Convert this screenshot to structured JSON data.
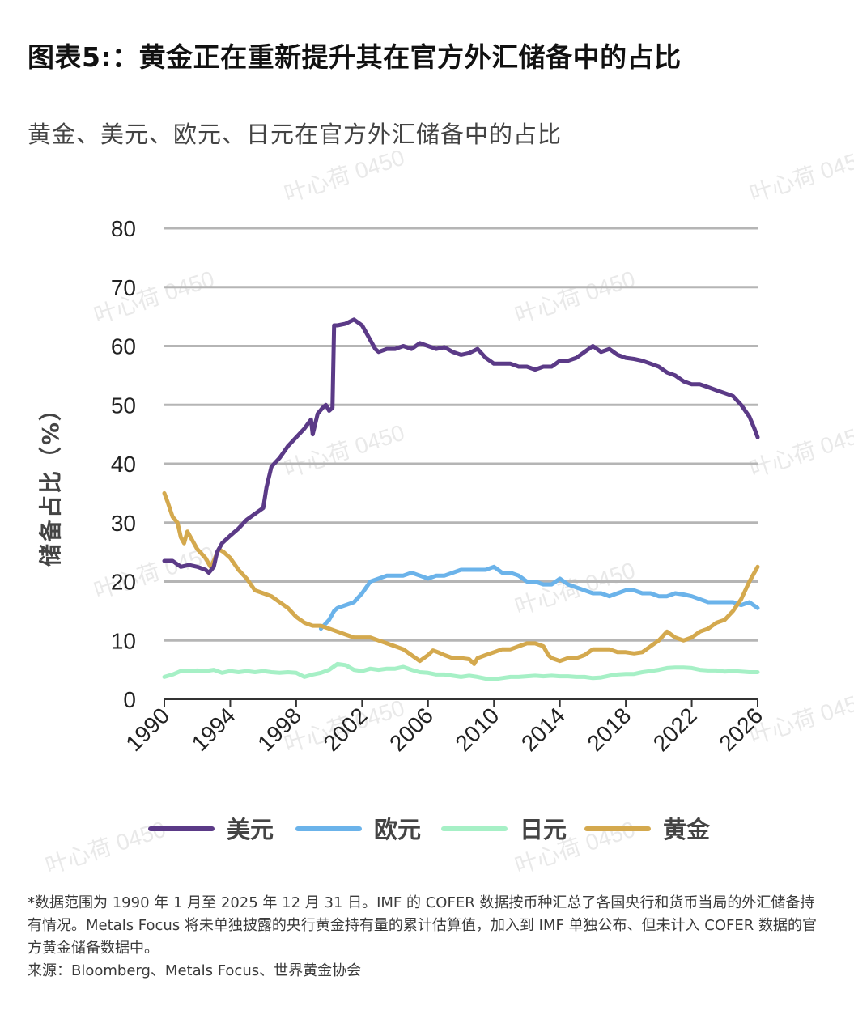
{
  "title": "图表5:：黄金正在重新提升其在官方外汇储备中的占比",
  "chart_data": {
    "type": "line",
    "title": "黄金、美元、欧元、日元在官方外汇储备中的占比",
    "xlabel": "",
    "ylabel": "储备占比（%）",
    "xlim": [
      1990,
      2026
    ],
    "ylim": [
      0,
      80
    ],
    "x_ticks": [
      "1990",
      "1994",
      "1998",
      "2002",
      "2006",
      "2010",
      "2014",
      "2018",
      "2022",
      "2026"
    ],
    "y_ticks": [
      "0",
      "10",
      "20",
      "30",
      "40",
      "50",
      "60",
      "70",
      "80"
    ],
    "grid": true,
    "legend_position": "bottom",
    "series": [
      {
        "name": "美元",
        "color": "#5b3a87",
        "points": [
          [
            1990.0,
            23.5
          ],
          [
            1990.5,
            23.5
          ],
          [
            1991.0,
            22.5
          ],
          [
            1991.5,
            22.8
          ],
          [
            1992.0,
            22.5
          ],
          [
            1992.5,
            22.0
          ],
          [
            1992.7,
            21.5
          ],
          [
            1993.0,
            22.5
          ],
          [
            1993.2,
            25.0
          ],
          [
            1993.5,
            26.5
          ],
          [
            1994.0,
            27.8
          ],
          [
            1994.5,
            29.0
          ],
          [
            1995.0,
            30.5
          ],
          [
            1995.5,
            31.5
          ],
          [
            1996.0,
            32.5
          ],
          [
            1996.2,
            36.0
          ],
          [
            1996.5,
            39.5
          ],
          [
            1997.0,
            41.0
          ],
          [
            1997.5,
            43.0
          ],
          [
            1998.0,
            44.5
          ],
          [
            1998.5,
            46.0
          ],
          [
            1998.9,
            47.5
          ],
          [
            1999.0,
            45.0
          ],
          [
            1999.3,
            48.5
          ],
          [
            1999.6,
            49.5
          ],
          [
            1999.8,
            50.0
          ],
          [
            2000.0,
            49.0
          ],
          [
            2000.2,
            49.5
          ],
          [
            2000.3,
            63.5
          ],
          [
            2000.5,
            63.5
          ],
          [
            2001.0,
            63.8
          ],
          [
            2001.5,
            64.5
          ],
          [
            2002.0,
            63.5
          ],
          [
            2002.5,
            61.0
          ],
          [
            2002.8,
            59.5
          ],
          [
            2003.0,
            59.0
          ],
          [
            2003.5,
            59.5
          ],
          [
            2004.0,
            59.5
          ],
          [
            2004.5,
            60.0
          ],
          [
            2005.0,
            59.5
          ],
          [
            2005.5,
            60.5
          ],
          [
            2006.0,
            60.0
          ],
          [
            2006.5,
            59.5
          ],
          [
            2007.0,
            59.8
          ],
          [
            2007.5,
            59.0
          ],
          [
            2008.0,
            58.5
          ],
          [
            2008.5,
            58.8
          ],
          [
            2009.0,
            59.5
          ],
          [
            2009.5,
            58.0
          ],
          [
            2010.0,
            57.0
          ],
          [
            2010.5,
            57.0
          ],
          [
            2011.0,
            57.0
          ],
          [
            2011.5,
            56.5
          ],
          [
            2012.0,
            56.5
          ],
          [
            2012.5,
            56.0
          ],
          [
            2013.0,
            56.5
          ],
          [
            2013.5,
            56.5
          ],
          [
            2014.0,
            57.5
          ],
          [
            2014.5,
            57.5
          ],
          [
            2015.0,
            58.0
          ],
          [
            2015.5,
            59.0
          ],
          [
            2016.0,
            60.0
          ],
          [
            2016.5,
            59.0
          ],
          [
            2017.0,
            59.5
          ],
          [
            2017.5,
            58.5
          ],
          [
            2018.0,
            58.0
          ],
          [
            2018.5,
            57.8
          ],
          [
            2019.0,
            57.5
          ],
          [
            2019.5,
            57.0
          ],
          [
            2020.0,
            56.5
          ],
          [
            2020.5,
            55.5
          ],
          [
            2021.0,
            55.0
          ],
          [
            2021.5,
            54.0
          ],
          [
            2022.0,
            53.5
          ],
          [
            2022.5,
            53.5
          ],
          [
            2023.0,
            53.0
          ],
          [
            2023.5,
            52.5
          ],
          [
            2024.0,
            52.0
          ],
          [
            2024.5,
            51.5
          ],
          [
            2025.0,
            50.0
          ],
          [
            2025.5,
            48.0
          ],
          [
            2025.8,
            46.0
          ],
          [
            2026.0,
            44.5
          ]
        ]
      },
      {
        "name": "欧元",
        "color": "#6bb3ea",
        "points": [
          [
            1999.5,
            12.0
          ],
          [
            2000.0,
            13.5
          ],
          [
            2000.3,
            15.0
          ],
          [
            2000.5,
            15.5
          ],
          [
            2001.0,
            16.0
          ],
          [
            2001.5,
            16.5
          ],
          [
            2002.0,
            18.0
          ],
          [
            2002.5,
            20.0
          ],
          [
            2003.0,
            20.5
          ],
          [
            2003.5,
            21.0
          ],
          [
            2004.0,
            21.0
          ],
          [
            2004.5,
            21.0
          ],
          [
            2005.0,
            21.5
          ],
          [
            2005.5,
            21.0
          ],
          [
            2006.0,
            20.5
          ],
          [
            2006.5,
            21.0
          ],
          [
            2007.0,
            21.0
          ],
          [
            2007.5,
            21.5
          ],
          [
            2008.0,
            22.0
          ],
          [
            2008.5,
            22.0
          ],
          [
            2009.0,
            22.0
          ],
          [
            2009.5,
            22.0
          ],
          [
            2010.0,
            22.5
          ],
          [
            2010.5,
            21.5
          ],
          [
            2011.0,
            21.5
          ],
          [
            2011.5,
            21.0
          ],
          [
            2012.0,
            20.0
          ],
          [
            2012.5,
            20.0
          ],
          [
            2013.0,
            19.5
          ],
          [
            2013.5,
            19.5
          ],
          [
            2014.0,
            20.5
          ],
          [
            2014.5,
            19.5
          ],
          [
            2015.0,
            19.0
          ],
          [
            2015.5,
            18.5
          ],
          [
            2016.0,
            18.0
          ],
          [
            2016.5,
            18.0
          ],
          [
            2017.0,
            17.5
          ],
          [
            2017.5,
            18.0
          ],
          [
            2018.0,
            18.5
          ],
          [
            2018.5,
            18.5
          ],
          [
            2019.0,
            18.0
          ],
          [
            2019.5,
            18.0
          ],
          [
            2020.0,
            17.5
          ],
          [
            2020.5,
            17.5
          ],
          [
            2021.0,
            18.0
          ],
          [
            2021.5,
            17.8
          ],
          [
            2022.0,
            17.5
          ],
          [
            2022.5,
            17.0
          ],
          [
            2023.0,
            16.5
          ],
          [
            2023.5,
            16.5
          ],
          [
            2024.0,
            16.5
          ],
          [
            2024.5,
            16.5
          ],
          [
            2025.0,
            16.0
          ],
          [
            2025.5,
            16.5
          ],
          [
            2026.0,
            15.5
          ]
        ]
      },
      {
        "name": "日元",
        "color": "#a6f0c6",
        "points": [
          [
            1990.0,
            3.8
          ],
          [
            1990.5,
            4.2
          ],
          [
            1991.0,
            4.8
          ],
          [
            1991.5,
            4.8
          ],
          [
            1992.0,
            4.9
          ],
          [
            1992.5,
            4.8
          ],
          [
            1993.0,
            5.0
          ],
          [
            1993.5,
            4.5
          ],
          [
            1994.0,
            4.8
          ],
          [
            1994.5,
            4.6
          ],
          [
            1995.0,
            4.8
          ],
          [
            1995.5,
            4.6
          ],
          [
            1996.0,
            4.8
          ],
          [
            1996.5,
            4.6
          ],
          [
            1997.0,
            4.5
          ],
          [
            1997.5,
            4.6
          ],
          [
            1998.0,
            4.5
          ],
          [
            1998.5,
            3.8
          ],
          [
            1999.0,
            4.2
          ],
          [
            1999.5,
            4.5
          ],
          [
            2000.0,
            5.0
          ],
          [
            2000.5,
            6.0
          ],
          [
            2001.0,
            5.8
          ],
          [
            2001.5,
            5.0
          ],
          [
            2002.0,
            4.8
          ],
          [
            2002.5,
            5.2
          ],
          [
            2003.0,
            5.0
          ],
          [
            2003.5,
            5.2
          ],
          [
            2004.0,
            5.2
          ],
          [
            2004.5,
            5.5
          ],
          [
            2005.0,
            5.0
          ],
          [
            2005.5,
            4.6
          ],
          [
            2006.0,
            4.5
          ],
          [
            2006.5,
            4.2
          ],
          [
            2007.0,
            4.2
          ],
          [
            2007.5,
            4.0
          ],
          [
            2008.0,
            3.8
          ],
          [
            2008.5,
            4.0
          ],
          [
            2009.0,
            3.8
          ],
          [
            2009.5,
            3.5
          ],
          [
            2010.0,
            3.4
          ],
          [
            2010.5,
            3.6
          ],
          [
            2011.0,
            3.8
          ],
          [
            2011.5,
            3.8
          ],
          [
            2012.0,
            3.9
          ],
          [
            2012.5,
            4.0
          ],
          [
            2013.0,
            3.9
          ],
          [
            2013.5,
            4.0
          ],
          [
            2014.0,
            3.9
          ],
          [
            2014.5,
            3.9
          ],
          [
            2015.0,
            3.8
          ],
          [
            2015.5,
            3.8
          ],
          [
            2016.0,
            3.6
          ],
          [
            2016.5,
            3.7
          ],
          [
            2017.0,
            4.0
          ],
          [
            2017.5,
            4.2
          ],
          [
            2018.0,
            4.3
          ],
          [
            2018.5,
            4.3
          ],
          [
            2019.0,
            4.6
          ],
          [
            2019.5,
            4.8
          ],
          [
            2020.0,
            5.0
          ],
          [
            2020.5,
            5.3
          ],
          [
            2021.0,
            5.4
          ],
          [
            2021.5,
            5.4
          ],
          [
            2022.0,
            5.3
          ],
          [
            2022.5,
            5.0
          ],
          [
            2023.0,
            4.9
          ],
          [
            2023.5,
            4.9
          ],
          [
            2024.0,
            4.7
          ],
          [
            2024.5,
            4.8
          ],
          [
            2025.0,
            4.7
          ],
          [
            2025.5,
            4.6
          ],
          [
            2026.0,
            4.6
          ]
        ]
      },
      {
        "name": "黄金",
        "color": "#d4a94e",
        "points": [
          [
            1990.0,
            35.0
          ],
          [
            1990.2,
            33.5
          ],
          [
            1990.5,
            31.0
          ],
          [
            1990.8,
            30.0
          ],
          [
            1991.0,
            27.5
          ],
          [
            1991.2,
            26.5
          ],
          [
            1991.4,
            28.5
          ],
          [
            1991.7,
            27.0
          ],
          [
            1992.0,
            25.5
          ],
          [
            1992.5,
            24.0
          ],
          [
            1992.8,
            22.5
          ],
          [
            1993.0,
            23.5
          ],
          [
            1993.3,
            25.5
          ],
          [
            1993.6,
            25.0
          ],
          [
            1994.0,
            24.0
          ],
          [
            1994.5,
            22.0
          ],
          [
            1995.0,
            20.5
          ],
          [
            1995.5,
            18.5
          ],
          [
            1996.0,
            18.0
          ],
          [
            1996.5,
            17.5
          ],
          [
            1997.0,
            16.5
          ],
          [
            1997.5,
            15.5
          ],
          [
            1998.0,
            14.0
          ],
          [
            1998.5,
            13.0
          ],
          [
            1999.0,
            12.5
          ],
          [
            1999.5,
            12.5
          ],
          [
            2000.0,
            12.0
          ],
          [
            2000.5,
            11.5
          ],
          [
            2001.0,
            11.0
          ],
          [
            2001.5,
            10.5
          ],
          [
            2002.0,
            10.5
          ],
          [
            2002.5,
            10.5
          ],
          [
            2003.0,
            10.0
          ],
          [
            2003.5,
            9.5
          ],
          [
            2004.0,
            9.0
          ],
          [
            2004.5,
            8.5
          ],
          [
            2005.0,
            7.5
          ],
          [
            2005.5,
            6.5
          ],
          [
            2006.0,
            7.5
          ],
          [
            2006.3,
            8.3
          ],
          [
            2006.6,
            8.0
          ],
          [
            2007.0,
            7.5
          ],
          [
            2007.5,
            7.0
          ],
          [
            2008.0,
            7.0
          ],
          [
            2008.5,
            6.8
          ],
          [
            2008.8,
            6.0
          ],
          [
            2009.0,
            7.0
          ],
          [
            2009.5,
            7.5
          ],
          [
            2010.0,
            8.0
          ],
          [
            2010.5,
            8.5
          ],
          [
            2011.0,
            8.5
          ],
          [
            2011.5,
            9.0
          ],
          [
            2012.0,
            9.5
          ],
          [
            2012.5,
            9.5
          ],
          [
            2013.0,
            9.0
          ],
          [
            2013.3,
            7.5
          ],
          [
            2013.5,
            7.0
          ],
          [
            2014.0,
            6.5
          ],
          [
            2014.5,
            7.0
          ],
          [
            2015.0,
            7.0
          ],
          [
            2015.5,
            7.5
          ],
          [
            2016.0,
            8.5
          ],
          [
            2016.5,
            8.5
          ],
          [
            2017.0,
            8.5
          ],
          [
            2017.5,
            8.0
          ],
          [
            2018.0,
            8.0
          ],
          [
            2018.5,
            7.8
          ],
          [
            2019.0,
            8.0
          ],
          [
            2019.5,
            9.0
          ],
          [
            2020.0,
            10.0
          ],
          [
            2020.5,
            11.5
          ],
          [
            2021.0,
            10.5
          ],
          [
            2021.5,
            10.0
          ],
          [
            2022.0,
            10.5
          ],
          [
            2022.5,
            11.5
          ],
          [
            2023.0,
            12.0
          ],
          [
            2023.5,
            13.0
          ],
          [
            2024.0,
            13.5
          ],
          [
            2024.5,
            15.0
          ],
          [
            2025.0,
            17.0
          ],
          [
            2025.5,
            20.0
          ],
          [
            2025.8,
            21.5
          ],
          [
            2026.0,
            22.5
          ]
        ]
      }
    ]
  },
  "watermark": "叶心荷 0450",
  "notes": {
    "line1": "*数据范围为 1990 年 1 月至 2025 年 12 月 31 日。IMF 的 COFER 数据按币种汇总了各国央行和货币当局的外汇储备持有情况。Metals Focus 将未单独披露的央行黄金持有量的累计估算值，加入到 IMF 单独公布、但未计入 COFER 数据的官方黄金储备数据中。",
    "source": "来源：Bloomberg、Metals Focus、世界黄金协会"
  }
}
